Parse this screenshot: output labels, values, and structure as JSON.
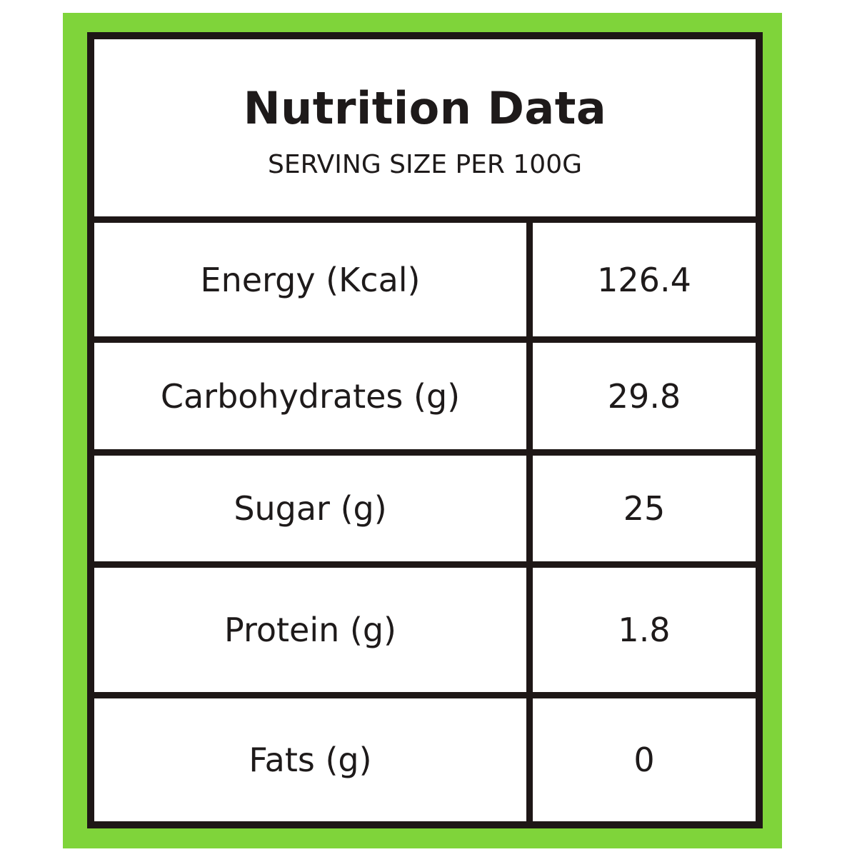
{
  "header": {
    "title": "Nutrition Data",
    "subtitle": "SERVING SIZE PER 100G"
  },
  "table": {
    "rows": [
      [
        "Energy (Kcal)",
        126.4
      ],
      [
        "Carbohydrates (g)",
        29.8
      ],
      [
        "Sugar (g)",
        25
      ],
      [
        "Protein (g)",
        1.8
      ],
      [
        "Fats (g)",
        0
      ]
    ]
  }
}
